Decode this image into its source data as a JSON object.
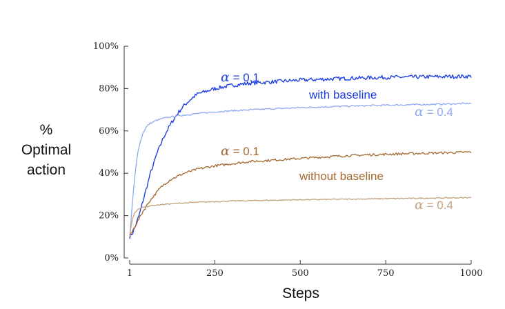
{
  "chart_data": {
    "type": "line",
    "xlabel": "Steps",
    "ylabel_lines": [
      "%",
      "Optimal",
      "action"
    ],
    "xlim": [
      1,
      1000
    ],
    "ylim": [
      0,
      100
    ],
    "x_ticks": [
      1,
      250,
      500,
      750,
      1000
    ],
    "y_ticks": [
      0,
      20,
      40,
      60,
      80,
      100
    ],
    "y_tick_suffix": "%",
    "grid": false,
    "series": [
      {
        "color": "#1f3fe0",
        "label_lines": [
          "α = 0.1"
        ],
        "x": [
          1,
          10,
          20,
          30,
          40,
          50,
          60,
          70,
          80,
          90,
          100,
          120,
          140,
          160,
          180,
          200,
          220,
          250,
          300,
          350,
          400,
          450,
          500,
          550,
          600,
          650,
          700,
          750,
          800,
          850,
          900,
          950,
          1000
        ],
        "y": [
          10,
          12,
          16,
          21,
          27,
          33,
          39,
          44,
          49,
          53,
          57,
          63,
          68,
          72,
          75,
          77.5,
          78.5,
          80,
          81.5,
          82.5,
          83,
          83.5,
          84,
          84.3,
          84.6,
          84.9,
          85.1,
          85.3,
          85.4,
          85.5,
          85.6,
          85.7,
          85.8
        ]
      },
      {
        "color": "#8eaaef",
        "label_lines": [
          "α = 0.4"
        ],
        "x": [
          1,
          5,
          10,
          15,
          20,
          25,
          30,
          40,
          50,
          60,
          80,
          100,
          120,
          150,
          200,
          250,
          300,
          400,
          500,
          600,
          700,
          800,
          900,
          1000
        ],
        "y": [
          10,
          18,
          28,
          37,
          44,
          50,
          54,
          59,
          62,
          63.5,
          65,
          66,
          66.6,
          67.3,
          68.2,
          69,
          69.5,
          70.3,
          71,
          71.5,
          72,
          72.3,
          72.6,
          73
        ]
      },
      {
        "color": "#a2692f",
        "label_lines": [
          "α = 0.1"
        ],
        "x": [
          1,
          10,
          20,
          30,
          40,
          50,
          60,
          70,
          80,
          90,
          100,
          120,
          140,
          160,
          180,
          200,
          250,
          300,
          350,
          400,
          500,
          600,
          700,
          800,
          900,
          1000
        ],
        "y": [
          10,
          13,
          16,
          19,
          22,
          24.5,
          27,
          29,
          31,
          33,
          34.5,
          37,
          38.5,
          40,
          41,
          42,
          43.5,
          44.5,
          45.5,
          46,
          47,
          48,
          48.7,
          49.2,
          49.6,
          50
        ]
      },
      {
        "color": "#c2a27f",
        "label_lines": [
          "α = 0.4"
        ],
        "x": [
          1,
          5,
          10,
          15,
          20,
          30,
          40,
          60,
          80,
          100,
          150,
          200,
          250,
          300,
          400,
          500,
          600,
          700,
          800,
          900,
          1000
        ],
        "y": [
          10,
          15,
          19,
          21,
          22.2,
          23.3,
          24,
          24.6,
          25,
          25.3,
          25.9,
          26.3,
          26.6,
          26.9,
          27.2,
          27.5,
          27.7,
          27.9,
          28.1,
          28.3,
          28.5
        ]
      }
    ],
    "annotations": [
      {
        "text": "with baseline",
        "color": "#1f3fe0"
      },
      {
        "text": "without baseline",
        "color": "#a2692f"
      }
    ]
  }
}
